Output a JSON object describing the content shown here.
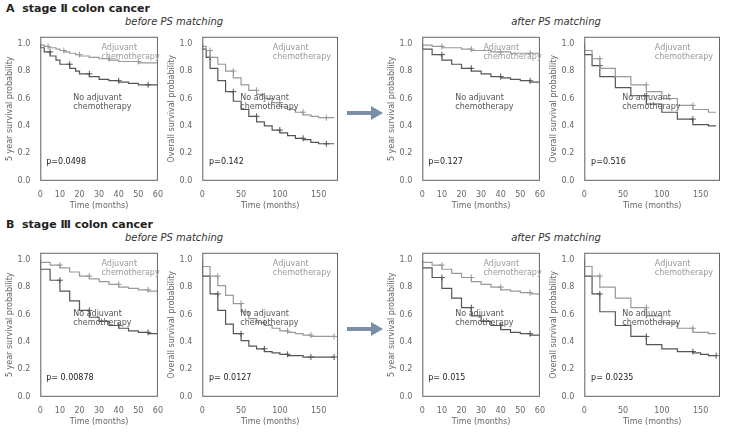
{
  "chart_data": [
    {
      "type": "step",
      "title": "A  stage Ⅱ colon cancer",
      "subtitle": "before PS matching",
      "xlabel": "Time (months)",
      "ylabel": "5 year survival probability",
      "xlim": [
        0,
        60
      ],
      "ylim": [
        0,
        1.05
      ],
      "xticks": [
        0,
        10,
        20,
        30,
        40,
        50,
        60
      ],
      "yticks": [
        {
          "value": 0.0,
          "label": "0.0"
        },
        0.2,
        0.4,
        0.6,
        0.8,
        {
          "value": 1.0,
          "label": "1.0"
        }
      ],
      "grid": false,
      "annotations": [
        "p=0.0498"
      ],
      "series": [
        {
          "name": "Adjuvant\nchemotherapy",
          "color": "#999999",
          "marker": "+",
          "x": [
            0,
            2,
            4,
            8,
            10,
            12,
            15,
            18,
            20,
            25,
            30,
            35,
            40,
            45,
            50,
            55,
            60
          ],
          "values": [
            1.0,
            0.99,
            0.98,
            0.97,
            0.96,
            0.95,
            0.94,
            0.93,
            0.92,
            0.91,
            0.9,
            0.89,
            0.88,
            0.87,
            0.87,
            0.86,
            0.86
          ]
        },
        {
          "name": "No adjuvant\nchemotherapy",
          "color": "#555555",
          "marker": "+",
          "x": [
            0,
            2,
            5,
            8,
            10,
            15,
            18,
            20,
            25,
            30,
            35,
            40,
            45,
            50,
            55,
            60
          ],
          "values": [
            1.0,
            0.97,
            0.94,
            0.91,
            0.88,
            0.85,
            0.82,
            0.8,
            0.78,
            0.76,
            0.74,
            0.73,
            0.72,
            0.71,
            0.7,
            0.7
          ]
        }
      ]
    },
    {
      "type": "step",
      "xlabel": "Time (months)",
      "ylabel": "Overall survival probability",
      "xlim": [
        0,
        175
      ],
      "ylim": [
        0,
        1.05
      ],
      "xticks": [
        0,
        50,
        100,
        150
      ],
      "yticks": [
        {
          "value": 0.0,
          "label": "0.0"
        },
        0.2,
        0.4,
        0.6,
        0.8,
        {
          "value": 1.0,
          "label": "1.0"
        }
      ],
      "grid": false,
      "annotations": [
        "p=0.142"
      ],
      "series": [
        {
          "name": "Adjuvant\nchemotherapy",
          "color": "#999999",
          "marker": "+",
          "x": [
            0,
            5,
            10,
            20,
            30,
            40,
            50,
            60,
            70,
            80,
            90,
            100,
            110,
            120,
            130,
            140,
            150,
            160,
            170
          ],
          "values": [
            1.0,
            0.98,
            0.95,
            0.9,
            0.85,
            0.8,
            0.75,
            0.7,
            0.66,
            0.63,
            0.6,
            0.57,
            0.54,
            0.52,
            0.5,
            0.48,
            0.47,
            0.46,
            0.46
          ]
        },
        {
          "name": "No adjuvant\nchemotherapy",
          "color": "#555555",
          "marker": "+",
          "x": [
            0,
            5,
            10,
            20,
            30,
            40,
            50,
            60,
            70,
            80,
            90,
            100,
            110,
            120,
            130,
            140,
            150,
            160,
            170
          ],
          "values": [
            1.0,
            0.96,
            0.9,
            0.82,
            0.73,
            0.65,
            0.58,
            0.52,
            0.47,
            0.43,
            0.4,
            0.37,
            0.35,
            0.33,
            0.31,
            0.3,
            0.28,
            0.27,
            0.27
          ]
        }
      ]
    },
    {
      "type": "step",
      "subtitle": "after PS matching",
      "xlabel": "Time (months)",
      "ylabel": "5 year survival probability",
      "xlim": [
        0,
        60
      ],
      "ylim": [
        0,
        1.05
      ],
      "xticks": [
        0,
        10,
        20,
        30,
        40,
        50,
        60
      ],
      "yticks": [
        {
          "value": 0.0,
          "label": "0.0"
        },
        0.2,
        0.4,
        0.6,
        0.8,
        {
          "value": 1.0,
          "label": "1.0"
        }
      ],
      "grid": false,
      "annotations": [
        "p=0.127"
      ],
      "series": [
        {
          "name": "Adjuvant\nchemotherapy",
          "color": "#999999",
          "marker": "+",
          "x": [
            0,
            5,
            10,
            15,
            20,
            25,
            30,
            35,
            40,
            45,
            50,
            55,
            60
          ],
          "values": [
            1.0,
            0.99,
            0.98,
            0.97,
            0.97,
            0.96,
            0.95,
            0.95,
            0.94,
            0.94,
            0.93,
            0.93,
            0.93
          ]
        },
        {
          "name": "No adjuvant\nchemotherapy",
          "color": "#555555",
          "marker": "+",
          "x": [
            0,
            5,
            10,
            15,
            20,
            25,
            30,
            35,
            40,
            45,
            50,
            55,
            60
          ],
          "values": [
            1.0,
            0.96,
            0.92,
            0.88,
            0.85,
            0.82,
            0.8,
            0.78,
            0.76,
            0.75,
            0.74,
            0.73,
            0.72
          ]
        }
      ]
    },
    {
      "type": "step",
      "xlabel": "Time (months)",
      "ylabel": "Overall survival probability",
      "xlim": [
        0,
        175
      ],
      "ylim": [
        0,
        1.05
      ],
      "xticks": [
        0,
        50,
        100,
        150
      ],
      "yticks": [
        {
          "value": 0.0,
          "label": "0.0"
        },
        0.2,
        0.4,
        0.6,
        0.8,
        {
          "value": 1.0,
          "label": "1.0"
        }
      ],
      "grid": false,
      "annotations": [
        "p=0.516"
      ],
      "series": [
        {
          "name": "Adjuvant\nchemotherapy",
          "color": "#999999",
          "marker": "+",
          "x": [
            0,
            10,
            20,
            40,
            60,
            80,
            100,
            120,
            140,
            160,
            170
          ],
          "values": [
            1.0,
            0.95,
            0.89,
            0.82,
            0.76,
            0.7,
            0.65,
            0.6,
            0.55,
            0.52,
            0.5
          ]
        },
        {
          "name": "No adjuvant\nchemotherapy",
          "color": "#555555",
          "marker": "+",
          "x": [
            0,
            10,
            20,
            40,
            60,
            80,
            100,
            120,
            140,
            160,
            170
          ],
          "values": [
            1.0,
            0.92,
            0.84,
            0.76,
            0.68,
            0.62,
            0.56,
            0.5,
            0.45,
            0.41,
            0.4
          ]
        }
      ]
    },
    {
      "type": "step",
      "title": "B  stage Ⅲ colon cancer",
      "subtitle": "before PS matching",
      "xlabel": "Time (months)",
      "ylabel": "5 year survival probability",
      "xlim": [
        0,
        60
      ],
      "ylim": [
        0,
        1.05
      ],
      "xticks": [
        0,
        10,
        20,
        30,
        40,
        50,
        60
      ],
      "yticks": [
        {
          "value": 0.0,
          "label": "0.0"
        },
        0.2,
        0.4,
        0.6,
        0.8,
        {
          "value": 1.0,
          "label": "1.0"
        }
      ],
      "grid": false,
      "annotations": [
        "p= 0.00878"
      ],
      "series": [
        {
          "name": "Adjuvant\nchemotherapy",
          "color": "#999999",
          "marker": "+",
          "x": [
            0,
            5,
            10,
            15,
            20,
            25,
            30,
            35,
            40,
            45,
            50,
            55,
            60
          ],
          "values": [
            1.0,
            0.98,
            0.96,
            0.94,
            0.91,
            0.88,
            0.86,
            0.84,
            0.82,
            0.8,
            0.79,
            0.78,
            0.77
          ]
        },
        {
          "name": "No adjuvant\nchemotherapy",
          "color": "#555555",
          "marker": "+",
          "x": [
            0,
            5,
            10,
            15,
            20,
            25,
            30,
            35,
            40,
            45,
            50,
            55,
            60
          ],
          "values": [
            1.0,
            0.93,
            0.85,
            0.77,
            0.7,
            0.63,
            0.58,
            0.55,
            0.52,
            0.5,
            0.48,
            0.47,
            0.46
          ]
        }
      ]
    },
    {
      "type": "step",
      "xlabel": "Time (months)",
      "ylabel": "Overall survival probability",
      "xlim": [
        0,
        175
      ],
      "ylim": [
        0,
        1.05
      ],
      "xticks": [
        0,
        50,
        100,
        150
      ],
      "yticks": [
        {
          "value": 0.0,
          "label": "0.0"
        },
        0.2,
        0.4,
        0.6,
        0.8,
        {
          "value": 1.0,
          "label": "1.0"
        }
      ],
      "grid": false,
      "annotations": [
        "p= 0.0127"
      ],
      "series": [
        {
          "name": "Adjuvant\nchemotherapy",
          "color": "#999999",
          "marker": "+",
          "x": [
            0,
            10,
            20,
            30,
            40,
            50,
            60,
            70,
            80,
            90,
            100,
            110,
            120,
            130,
            140,
            150,
            160,
            170
          ],
          "values": [
            1.0,
            0.95,
            0.88,
            0.81,
            0.74,
            0.68,
            0.62,
            0.57,
            0.54,
            0.52,
            0.5,
            0.48,
            0.47,
            0.46,
            0.45,
            0.44,
            0.44,
            0.44
          ]
        },
        {
          "name": "No adjuvant\nchemotherapy",
          "color": "#555555",
          "marker": "+",
          "x": [
            0,
            10,
            20,
            30,
            40,
            50,
            60,
            70,
            80,
            90,
            100,
            110,
            120,
            130,
            140,
            150,
            160,
            170
          ],
          "values": [
            1.0,
            0.88,
            0.75,
            0.63,
            0.53,
            0.46,
            0.41,
            0.37,
            0.35,
            0.33,
            0.32,
            0.31,
            0.3,
            0.3,
            0.29,
            0.29,
            0.29,
            0.29
          ]
        }
      ]
    },
    {
      "type": "step",
      "subtitle": "after PS matching",
      "xlabel": "Time (months)",
      "ylabel": "5 year survival probability",
      "xlim": [
        0,
        60
      ],
      "ylim": [
        0,
        1.05
      ],
      "xticks": [
        0,
        10,
        20,
        30,
        40,
        50,
        60
      ],
      "yticks": [
        {
          "value": 0.0,
          "label": "0.0"
        },
        0.2,
        0.4,
        0.6,
        0.8,
        {
          "value": 1.0,
          "label": "1.0"
        }
      ],
      "grid": false,
      "annotations": [
        "p= 0.015"
      ],
      "series": [
        {
          "name": "Adjuvant\nchemotherapy",
          "color": "#999999",
          "marker": "+",
          "x": [
            0,
            5,
            10,
            15,
            20,
            25,
            30,
            35,
            40,
            45,
            50,
            55,
            60
          ],
          "values": [
            1.0,
            0.98,
            0.96,
            0.93,
            0.9,
            0.87,
            0.84,
            0.82,
            0.8,
            0.78,
            0.77,
            0.76,
            0.75
          ]
        },
        {
          "name": "No adjuvant\nchemotherapy",
          "color": "#555555",
          "marker": "+",
          "x": [
            0,
            5,
            10,
            15,
            20,
            25,
            30,
            35,
            40,
            45,
            50,
            55,
            60
          ],
          "values": [
            1.0,
            0.94,
            0.87,
            0.79,
            0.72,
            0.65,
            0.59,
            0.55,
            0.52,
            0.49,
            0.47,
            0.46,
            0.45
          ]
        }
      ]
    },
    {
      "type": "step",
      "xlabel": "Time (months)",
      "ylabel": "Overall survival probability",
      "xlim": [
        0,
        175
      ],
      "ylim": [
        0,
        1.05
      ],
      "xticks": [
        0,
        50,
        100,
        150
      ],
      "yticks": [
        {
          "value": 0.0,
          "label": "0.0"
        },
        0.2,
        0.4,
        0.6,
        0.8,
        {
          "value": 1.0,
          "label": "1.0"
        }
      ],
      "grid": false,
      "annotations": [
        "p= 0.0235"
      ],
      "series": [
        {
          "name": "Adjuvant\nchemotherapy",
          "color": "#999999",
          "marker": "+",
          "x": [
            0,
            10,
            20,
            40,
            60,
            80,
            100,
            120,
            140,
            160,
            170
          ],
          "values": [
            1.0,
            0.95,
            0.88,
            0.8,
            0.72,
            0.65,
            0.59,
            0.54,
            0.5,
            0.47,
            0.46
          ]
        },
        {
          "name": "No adjuvant\nchemotherapy",
          "color": "#555555",
          "marker": "+",
          "x": [
            0,
            10,
            20,
            40,
            60,
            80,
            100,
            120,
            140,
            150,
            160,
            170
          ],
          "values": [
            1.0,
            0.88,
            0.75,
            0.62,
            0.52,
            0.44,
            0.38,
            0.35,
            0.33,
            0.32,
            0.31,
            0.3
          ]
        }
      ]
    }
  ]
}
